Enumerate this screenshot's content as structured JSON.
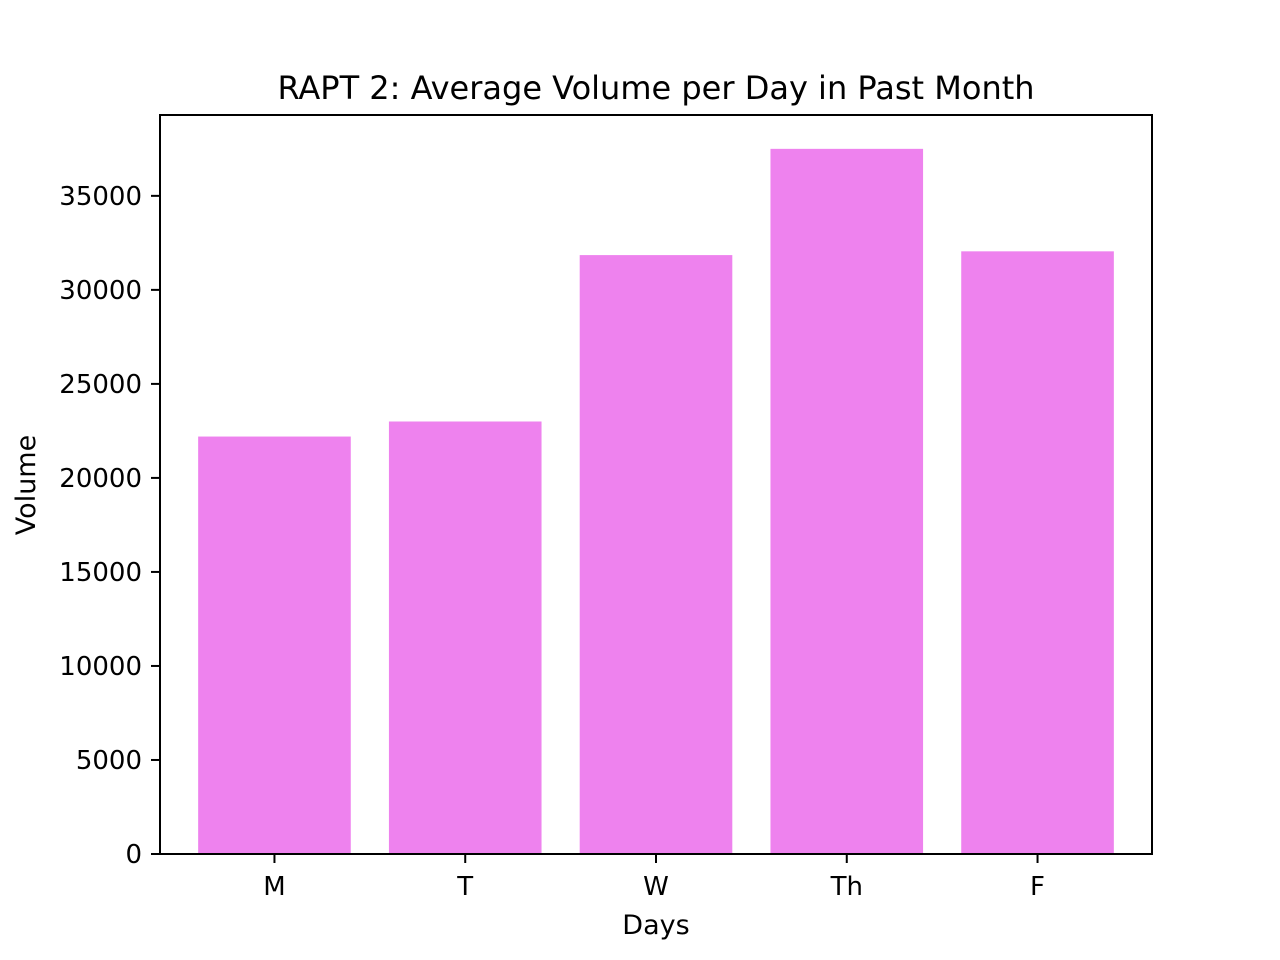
{
  "chart_data": {
    "type": "bar",
    "title": "RAPT 2: Average Volume per Day in Past Month",
    "xlabel": "Days",
    "ylabel": "Volume",
    "categories": [
      "M",
      "T",
      "W",
      "Th",
      "F"
    ],
    "values": [
      22200,
      23000,
      31850,
      37500,
      32050
    ],
    "ylim": [
      0,
      39300
    ],
    "yticks": [
      0,
      5000,
      10000,
      15000,
      20000,
      25000,
      30000,
      35000
    ],
    "bar_color": "#ee82ee",
    "grid": false,
    "legend": "none"
  }
}
